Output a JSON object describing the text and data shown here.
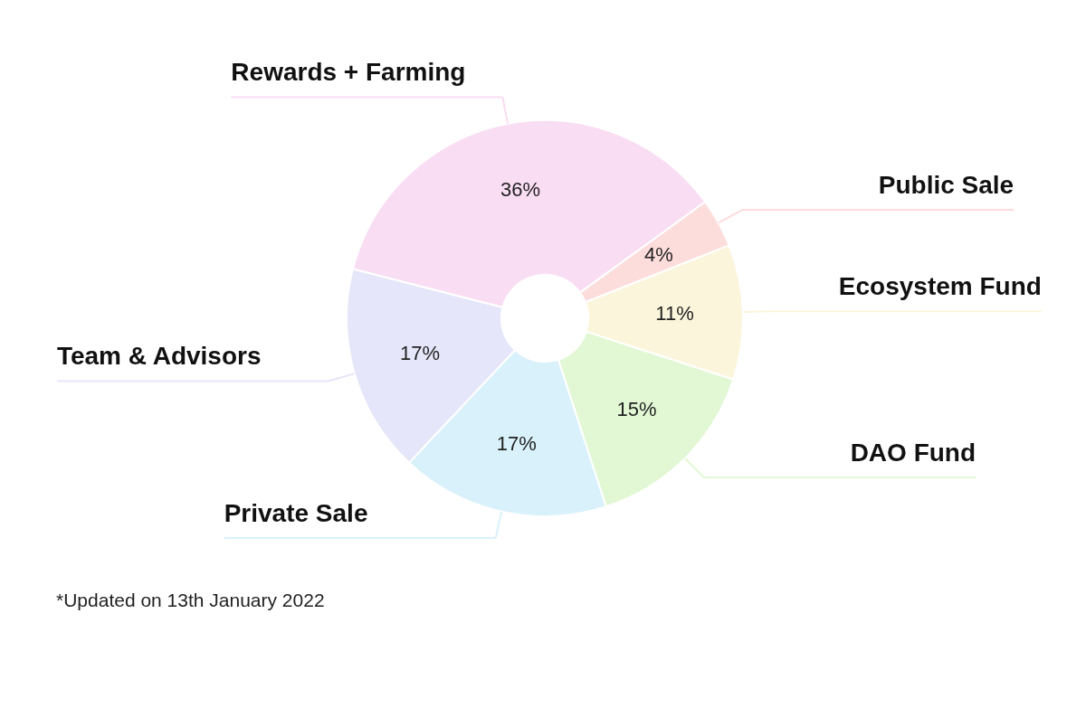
{
  "chart_data": {
    "type": "donut",
    "categories": [
      "Rewards + Farming",
      "Public Sale",
      "Ecosystem Fund",
      "DAO Fund",
      "Private Sale",
      "Team & Advisors"
    ],
    "values": [
      36,
      4,
      11,
      15,
      17,
      17
    ],
    "value_labels": [
      "36%",
      "4%",
      "11%",
      "15%",
      "17%",
      "17%"
    ],
    "colors": [
      "#f9ddf3",
      "#fddcdc",
      "#fbf5dc",
      "#e2f8d5",
      "#d9f1fa",
      "#e5e6f9"
    ],
    "legend": false,
    "annotations": [
      "*Updated on 13th January 2022"
    ]
  }
}
